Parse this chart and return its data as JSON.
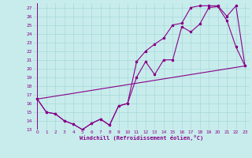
{
  "xlabel": "Windchill (Refroidissement éolien,°C)",
  "bg_color": "#c8ecec",
  "grid_color": "#a8d8d8",
  "line_color": "#880088",
  "xlim": [
    -0.5,
    23.5
  ],
  "ylim": [
    13,
    27.5
  ],
  "yticks": [
    13,
    14,
    15,
    16,
    17,
    18,
    19,
    20,
    21,
    22,
    23,
    24,
    25,
    26,
    27
  ],
  "xticks": [
    0,
    1,
    2,
    3,
    4,
    5,
    6,
    7,
    8,
    9,
    10,
    11,
    12,
    13,
    14,
    15,
    16,
    17,
    18,
    19,
    20,
    21,
    22,
    23
  ],
  "line1_x": [
    0,
    1,
    2,
    3,
    4,
    5,
    6,
    7,
    8,
    9,
    10,
    11,
    12,
    13,
    14,
    15,
    16,
    17,
    18,
    19,
    20,
    21,
    22,
    23
  ],
  "line1_y": [
    16.5,
    15.0,
    14.8,
    14.0,
    13.6,
    13.0,
    13.7,
    14.2,
    13.5,
    15.7,
    16.0,
    20.8,
    22.0,
    22.8,
    23.5,
    25.0,
    25.2,
    27.0,
    27.2,
    27.2,
    27.2,
    26.0,
    27.2,
    20.3
  ],
  "line2_x": [
    0,
    1,
    2,
    3,
    4,
    5,
    6,
    7,
    8,
    9,
    10,
    11,
    12,
    13,
    14,
    15,
    16,
    17,
    18,
    19,
    20,
    21,
    22,
    23
  ],
  "line2_y": [
    16.5,
    15.0,
    14.8,
    14.0,
    13.6,
    13.0,
    13.7,
    14.2,
    13.5,
    15.7,
    16.0,
    19.0,
    20.8,
    19.3,
    21.0,
    21.0,
    24.8,
    24.2,
    25.1,
    27.0,
    27.1,
    25.5,
    22.5,
    20.3
  ],
  "line3_x": [
    0,
    23
  ],
  "line3_y": [
    16.5,
    20.3
  ]
}
